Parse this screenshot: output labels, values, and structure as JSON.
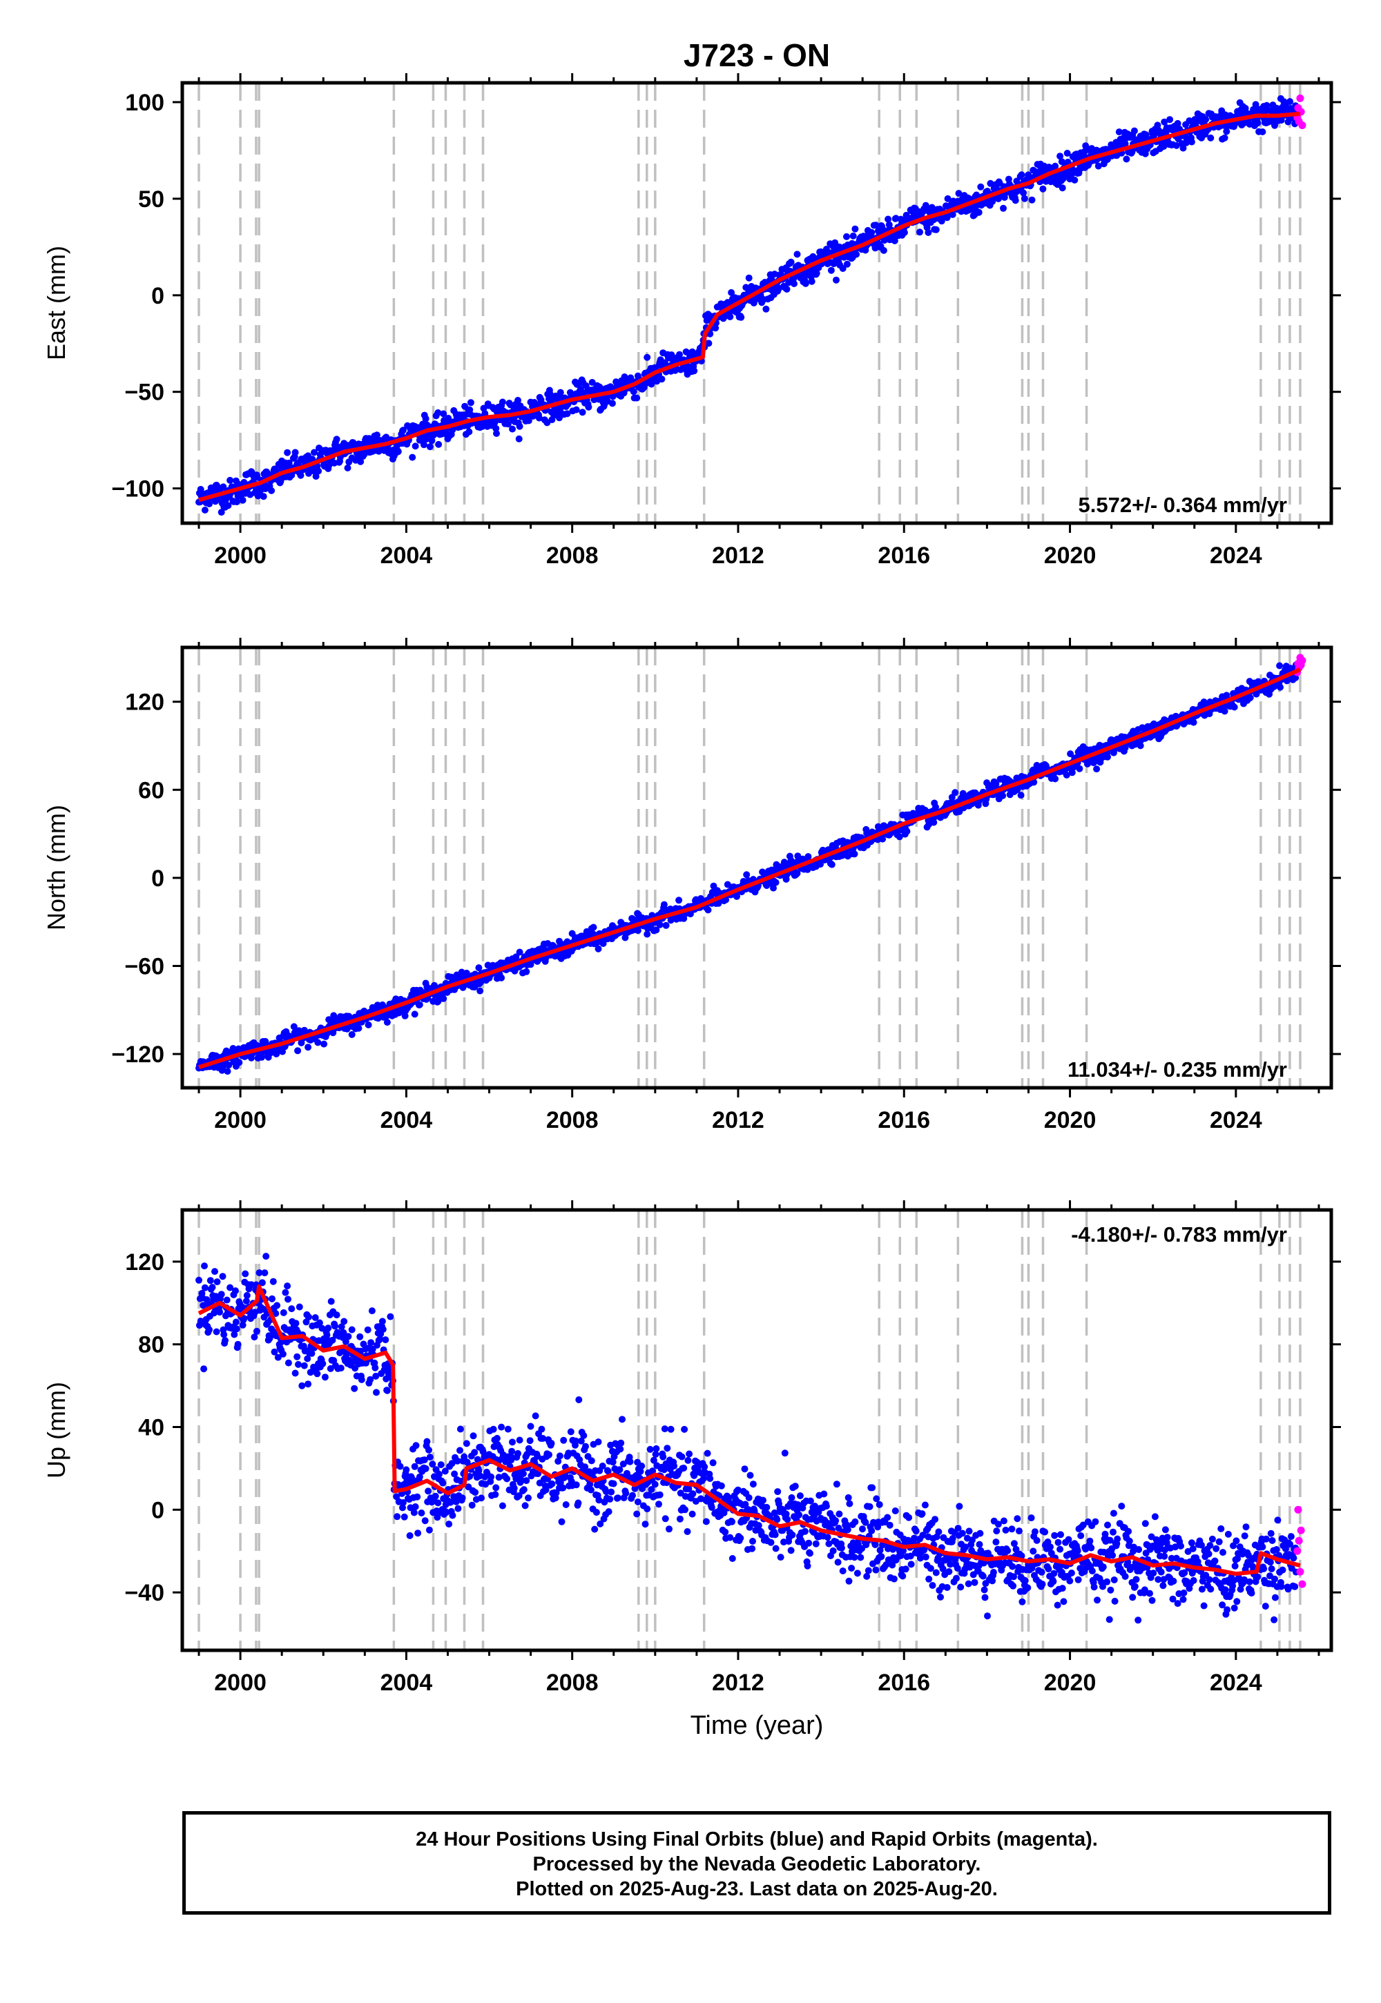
{
  "title": "J723 - ON",
  "x_label": "Time (year)",
  "footer": {
    "line1": "24 Hour Positions Using Final Orbits (blue) and Rapid Orbits (magenta).",
    "line2": "Processed by the Nevada Geodetic Laboratory.",
    "line3": "Plotted on 2025-Aug-23. Last data on 2025-Aug-20."
  },
  "colors": {
    "final": "#0000ff",
    "rapid": "#ff00ff",
    "model": "#ff0000",
    "steps": "#c0c0c0"
  },
  "chart_data": [
    {
      "type": "scatter",
      "panel": "east",
      "ylabel": "East (mm)",
      "xlim": [
        1998.6,
        2026.3
      ],
      "ylim": [
        -118,
        110
      ],
      "xticks": [
        2000,
        2004,
        2008,
        2012,
        2016,
        2020,
        2024
      ],
      "yticks": [
        -100,
        -50,
        0,
        50,
        100
      ],
      "grid": false,
      "annotation": "5.572+/- 0.364 mm/yr",
      "annotation_position": "bottom-right",
      "step_epochs": [
        1999.0,
        2000.0,
        2000.38,
        2000.45,
        2003.7,
        2004.65,
        2004.95,
        2005.4,
        2005.85,
        2009.6,
        2009.8,
        2010.0,
        2011.18,
        2015.4,
        2015.9,
        2016.3,
        2017.3,
        2018.85,
        2019.0,
        2019.35,
        2020.4,
        2024.6,
        2025.05,
        2025.3,
        2025.55
      ],
      "model": {
        "x": [
          1999.0,
          1999.5,
          2000.0,
          2000.5,
          2001.0,
          2001.5,
          2002.0,
          2002.5,
          2003.0,
          2003.5,
          2004.0,
          2004.5,
          2005.0,
          2005.5,
          2006.0,
          2006.5,
          2007.0,
          2007.5,
          2008.0,
          2008.5,
          2009.0,
          2009.5,
          2010.0,
          2010.5,
          2011.0,
          2011.15,
          2011.2,
          2011.5,
          2012.0,
          2012.5,
          2013.0,
          2013.5,
          2014.0,
          2014.5,
          2015.0,
          2015.5,
          2016.0,
          2016.5,
          2017.0,
          2017.5,
          2018.0,
          2018.5,
          2019.0,
          2019.5,
          2020.0,
          2020.5,
          2021.0,
          2021.5,
          2022.0,
          2022.5,
          2023.0,
          2023.5,
          2024.0,
          2024.5,
          2025.0,
          2025.55
        ],
        "y": [
          -106,
          -103,
          -100,
          -97,
          -92,
          -89,
          -85,
          -81,
          -79,
          -77,
          -74,
          -70,
          -68,
          -65,
          -63,
          -62,
          -60,
          -57,
          -54,
          -52,
          -50,
          -46,
          -40,
          -36,
          -33,
          -32,
          -20,
          -10,
          -4,
          2,
          8,
          13,
          18,
          22,
          26,
          31,
          36,
          40,
          43,
          47,
          51,
          55,
          58,
          63,
          67,
          71,
          74,
          77,
          80,
          83,
          86,
          89,
          91,
          93,
          93,
          94
        ]
      },
      "final_series_end": 2025.45,
      "rapid_x": [
        2025.48,
        2025.5,
        2025.52,
        2025.55,
        2025.57,
        2025.6
      ],
      "rapid_y": [
        92,
        97,
        90,
        102,
        95,
        88
      ],
      "noise_mm": 3.5
    },
    {
      "type": "scatter",
      "panel": "north",
      "ylabel": "North (mm)",
      "xlim": [
        1998.6,
        2026.3
      ],
      "ylim": [
        -143,
        157
      ],
      "xticks": [
        2000,
        2004,
        2008,
        2012,
        2016,
        2020,
        2024
      ],
      "yticks": [
        -120,
        -60,
        0,
        60,
        120
      ],
      "grid": false,
      "annotation": "11.034+/- 0.235 mm/yr",
      "annotation_position": "bottom-right",
      "step_epochs": [
        1999.0,
        2000.0,
        2000.38,
        2000.45,
        2003.7,
        2004.65,
        2004.95,
        2005.4,
        2005.85,
        2009.6,
        2009.8,
        2010.0,
        2011.18,
        2015.4,
        2015.9,
        2016.3,
        2017.3,
        2018.85,
        2019.0,
        2019.35,
        2020.4,
        2024.6,
        2025.05,
        2025.3,
        2025.55
      ],
      "model": {
        "x": [
          1999.0,
          2000.0,
          2001.0,
          2002.0,
          2003.0,
          2004.0,
          2005.0,
          2006.0,
          2007.0,
          2008.0,
          2009.0,
          2010.0,
          2011.0,
          2012.0,
          2013.0,
          2014.0,
          2015.0,
          2016.0,
          2017.0,
          2018.0,
          2019.0,
          2020.0,
          2021.0,
          2022.0,
          2023.0,
          2024.0,
          2025.0,
          2025.55
        ],
        "y": [
          -129,
          -120,
          -113,
          -104,
          -95,
          -85,
          -74,
          -65,
          -55,
          -46,
          -37,
          -28,
          -20,
          -8,
          3,
          14,
          25,
          37,
          46,
          57,
          67,
          78,
          89,
          100,
          112,
          123,
          135,
          142
        ]
      },
      "final_series_end": 2025.45,
      "rapid_x": [
        2025.48,
        2025.5,
        2025.52,
        2025.55,
        2025.57,
        2025.6
      ],
      "rapid_y": [
        140,
        146,
        143,
        150,
        145,
        148
      ],
      "noise_mm": 3
    },
    {
      "type": "scatter",
      "panel": "up",
      "ylabel": "Up (mm)",
      "xlim": [
        1998.6,
        2026.3
      ],
      "ylim": [
        -68,
        145
      ],
      "xticks": [
        2000,
        2004,
        2008,
        2012,
        2016,
        2020,
        2024
      ],
      "yticks": [
        -40,
        0,
        40,
        80,
        120
      ],
      "grid": false,
      "annotation": "-4.180+/- 0.783 mm/yr",
      "annotation_position": "top-right",
      "step_epochs": [
        1999.0,
        2000.0,
        2000.38,
        2000.45,
        2003.7,
        2004.65,
        2004.95,
        2005.4,
        2005.85,
        2009.6,
        2009.8,
        2010.0,
        2011.18,
        2015.4,
        2015.9,
        2016.3,
        2017.3,
        2018.85,
        2019.0,
        2019.35,
        2020.4,
        2024.6,
        2025.05,
        2025.3,
        2025.55
      ],
      "model": {
        "x": [
          1999.0,
          1999.5,
          2000.0,
          2000.4,
          2000.45,
          2001.0,
          2001.5,
          2002.0,
          2002.5,
          2003.0,
          2003.5,
          2003.68,
          2003.72,
          2004.0,
          2004.5,
          2005.0,
          2005.4,
          2005.45,
          2006.0,
          2006.5,
          2007.0,
          2007.5,
          2008.0,
          2008.5,
          2009.0,
          2009.5,
          2010.0,
          2010.5,
          2011.0,
          2011.5,
          2012.0,
          2012.5,
          2013.0,
          2013.5,
          2014.0,
          2014.5,
          2015.0,
          2015.5,
          2016.0,
          2016.5,
          2017.0,
          2017.5,
          2018.0,
          2018.5,
          2019.0,
          2019.5,
          2020.0,
          2020.5,
          2021.0,
          2021.5,
          2022.0,
          2022.5,
          2023.0,
          2023.5,
          2024.0,
          2024.5,
          2024.6,
          2025.0,
          2025.55
        ],
        "y": [
          95,
          100,
          94,
          101,
          108,
          83,
          84,
          77,
          79,
          73,
          76,
          70,
          9,
          10,
          14,
          8,
          12,
          20,
          24,
          19,
          22,
          16,
          20,
          14,
          17,
          12,
          17,
          13,
          12,
          5,
          -2,
          -3,
          -8,
          -6,
          -10,
          -12,
          -14,
          -15,
          -18,
          -17,
          -21,
          -22,
          -24,
          -23,
          -25,
          -24,
          -26,
          -22,
          -25,
          -23,
          -27,
          -26,
          -28,
          -29,
          -31,
          -30,
          -21,
          -24,
          -27
        ]
      },
      "final_series_end": 2025.45,
      "rapid_x": [
        2025.48,
        2025.5,
        2025.52,
        2025.55,
        2025.57,
        2025.6
      ],
      "rapid_y": [
        -20,
        0,
        -15,
        -30,
        -10,
        -36
      ],
      "noise_mm": 9
    }
  ]
}
